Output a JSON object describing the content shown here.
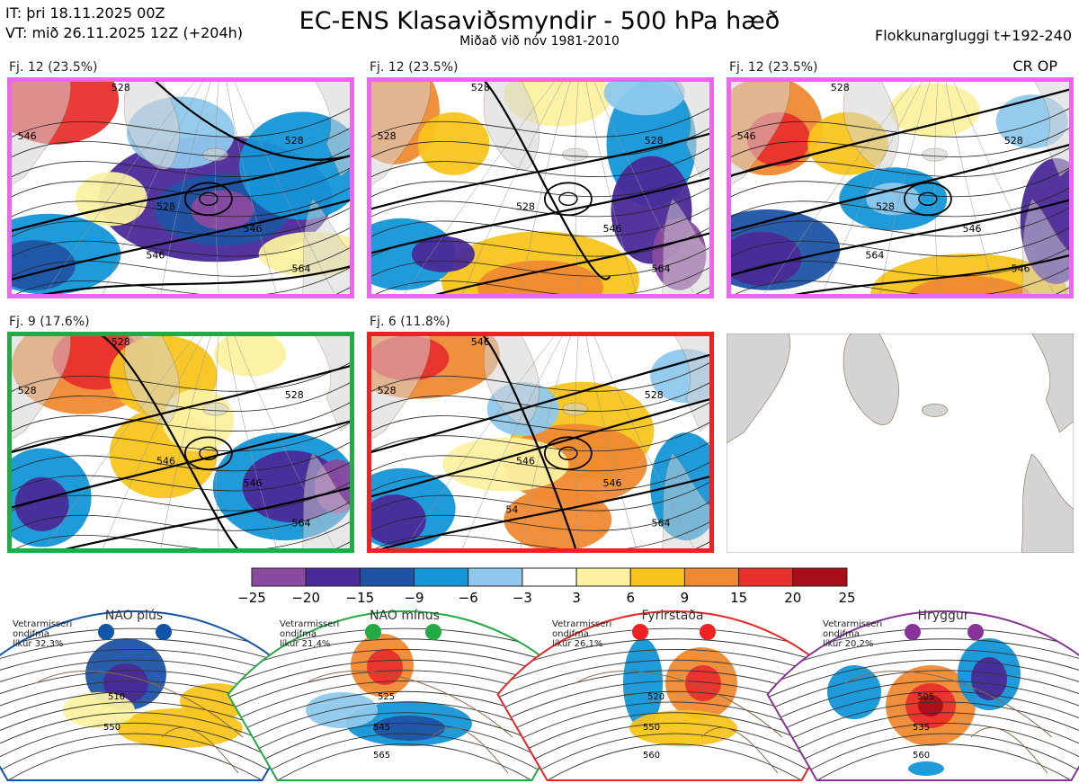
{
  "header": {
    "issue_time": "IT: þri 18.11.2025 00Z",
    "valid_time": "VT: mið 26.11.2025 12Z  (+204h)",
    "title": "EC-ENS Klasaviðsmyndir - 500 hPa hæð",
    "subtitle": "Miðað við nóv 1981-2010",
    "window": "Flokkunargluggi t+192-240",
    "cr_op": "CR OP"
  },
  "colors": {
    "border_pink": "#ee66ee",
    "border_green": "#22aa44",
    "border_red": "#ee2222",
    "border_blue": "#1155aa",
    "border_purple": "#883399",
    "land_grey": "#d4d4d4",
    "coast": "#8b6a4a"
  },
  "chart_data": [
    {
      "type": "heatmap",
      "title": "Fj. 12 (23.5%)",
      "contour_labels": [
        "528",
        "546",
        "528",
        "528",
        "546",
        "564",
        "546"
      ],
      "regime_color": "#ee66ee"
    },
    {
      "type": "heatmap",
      "title": "Fj. 12 (23.5%)",
      "contour_labels": [
        "528",
        "528",
        "528",
        "528",
        "546",
        "564"
      ],
      "regime_color": "#ee66ee"
    },
    {
      "type": "heatmap",
      "title": "Fj. 12 (23.5%)",
      "contour_labels": [
        "528",
        "546",
        "528",
        "528",
        "546",
        "546",
        "564"
      ],
      "regime_color": "#ee66ee"
    },
    {
      "type": "heatmap",
      "title": "Fj. 9 (17.6%)",
      "contour_labels": [
        "528",
        "528",
        "528",
        "546",
        "546",
        "564"
      ],
      "regime_color": "#22aa44"
    },
    {
      "type": "heatmap",
      "title": "Fj. 6 (11.8%)",
      "contour_labels": [
        "546",
        "528",
        "528",
        "546",
        "546",
        "564",
        "54"
      ],
      "regime_color": "#ee2222"
    },
    {
      "type": "heatmap",
      "title": "",
      "regime_color": "#cccccc"
    },
    {
      "type": "table",
      "title": "colour scale",
      "ticks": [
        -25,
        -20,
        -15,
        -9,
        -6,
        -3,
        3,
        6,
        9,
        15,
        20,
        25
      ],
      "tick_labels": [
        "−25",
        "−20",
        "−15",
        "−9",
        "−6",
        "−3",
        "3",
        "6",
        "9",
        "15",
        "20",
        "25"
      ],
      "bin_colors": [
        "#8a4aa0",
        "#4a2a98",
        "#1f54a4",
        "#1496d8",
        "#8fc8ec",
        "#ffffff",
        "#fbf1a0",
        "#f8c41c",
        "#f08a32",
        "#e8302c",
        "#a80e18"
      ]
    },
    {
      "type": "heatmap",
      "title": "NAO plús",
      "note": "Vetrarmisseri\nondjfma\nlíkur 32,3%",
      "contour_labels": [
        "510",
        "550"
      ],
      "regime_color": "#1155aa"
    },
    {
      "type": "heatmap",
      "title": "NAO mínus",
      "note": "Vetrarmisseri\nondjfma\nlíkur 21,4%",
      "contour_labels": [
        "525",
        "545",
        "565"
      ],
      "regime_color": "#22aa44"
    },
    {
      "type": "heatmap",
      "title": "Fyrirstaða",
      "note": "Vetrarmisseri\nondjfma\nlíkur 26,1%",
      "contour_labels": [
        "520",
        "550",
        "560"
      ],
      "regime_color": "#ee2222"
    },
    {
      "type": "heatmap",
      "title": "Hryggur",
      "note": "Vetrarmisseri\nondjfma\nlíkur 20,2%",
      "contour_labels": [
        "505",
        "535",
        "560"
      ],
      "regime_color": "#883399"
    }
  ]
}
